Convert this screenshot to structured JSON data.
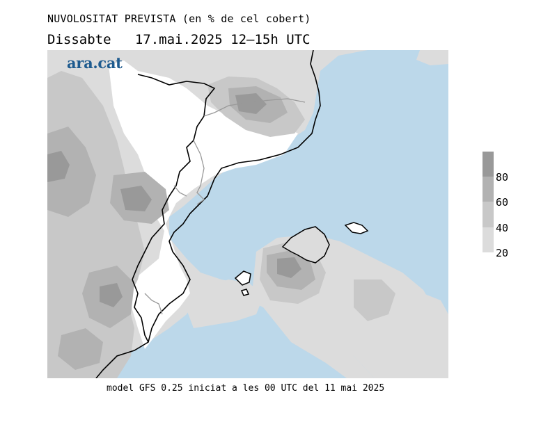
{
  "header": {
    "title": "NUVOLOSITAT PREVISTA (en % de cel cobert)",
    "day": "Dissabte",
    "date": "17.mai.2025",
    "hours": "12–15h UTC"
  },
  "brand": "ara.cat",
  "footer": "model GFS 0.25 iniciat a les 00 UTC del 11 mai 2025",
  "legend": {
    "labels": [
      "80",
      "60",
      "40",
      "20"
    ],
    "colors": [
      "#999999",
      "#b2b2b2",
      "#c8c8c8",
      "#dcdcdc"
    ]
  },
  "colors": {
    "sea": "#bcd8ea",
    "cloud_light": "#dcdcdc",
    "cloud_mid": "#c8c8c8",
    "cloud_dark": "#b2b2b2",
    "cloud_heavy": "#999999",
    "clear": "#ffffff"
  }
}
